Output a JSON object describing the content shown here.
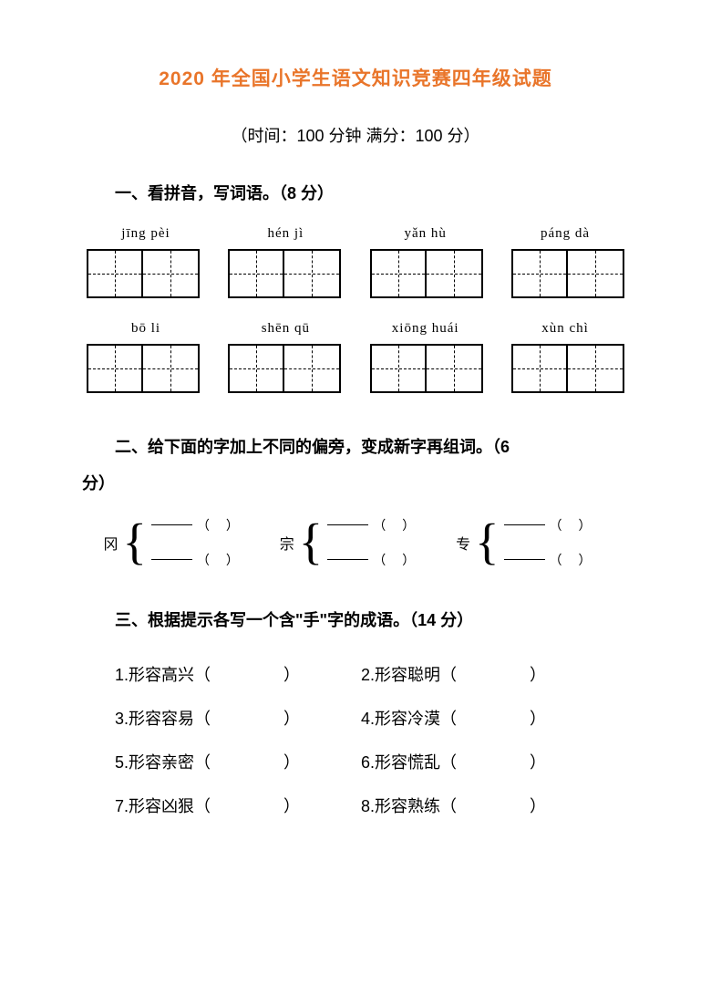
{
  "title": "2020 年全国小学生语文知识竞赛四年级试题",
  "subtitle": "（时间：100 分钟  满分：100 分）",
  "section1": {
    "header": "一、看拼音，写词语。（8 分）",
    "row1_pinyin": [
      "jīng pèi",
      "hén jì",
      "yǎn hù",
      "páng dà"
    ],
    "row2_pinyin": [
      "bō li",
      "shēn qū",
      "xiōng huái",
      "xùn chì"
    ]
  },
  "section2": {
    "header_line1": "二、给下面的字加上不同的偏旁，变成新字再组词。（6",
    "header_line2": "分）",
    "chars": [
      "冈",
      "宗",
      "专"
    ]
  },
  "section3": {
    "header": "三、根据提示各写一个含\"手\"字的成语。（14 分）",
    "items": [
      {
        "num": "1.",
        "text": "形容高兴"
      },
      {
        "num": "2.",
        "text": "形容聪明"
      },
      {
        "num": "3.",
        "text": "形容容易"
      },
      {
        "num": "4.",
        "text": "形容冷漠"
      },
      {
        "num": "5.",
        "text": "形容亲密"
      },
      {
        "num": "6.",
        "text": "形容慌乱"
      },
      {
        "num": "7.",
        "text": "形容凶狠"
      },
      {
        "num": "8.",
        "text": "形容熟练"
      }
    ]
  }
}
